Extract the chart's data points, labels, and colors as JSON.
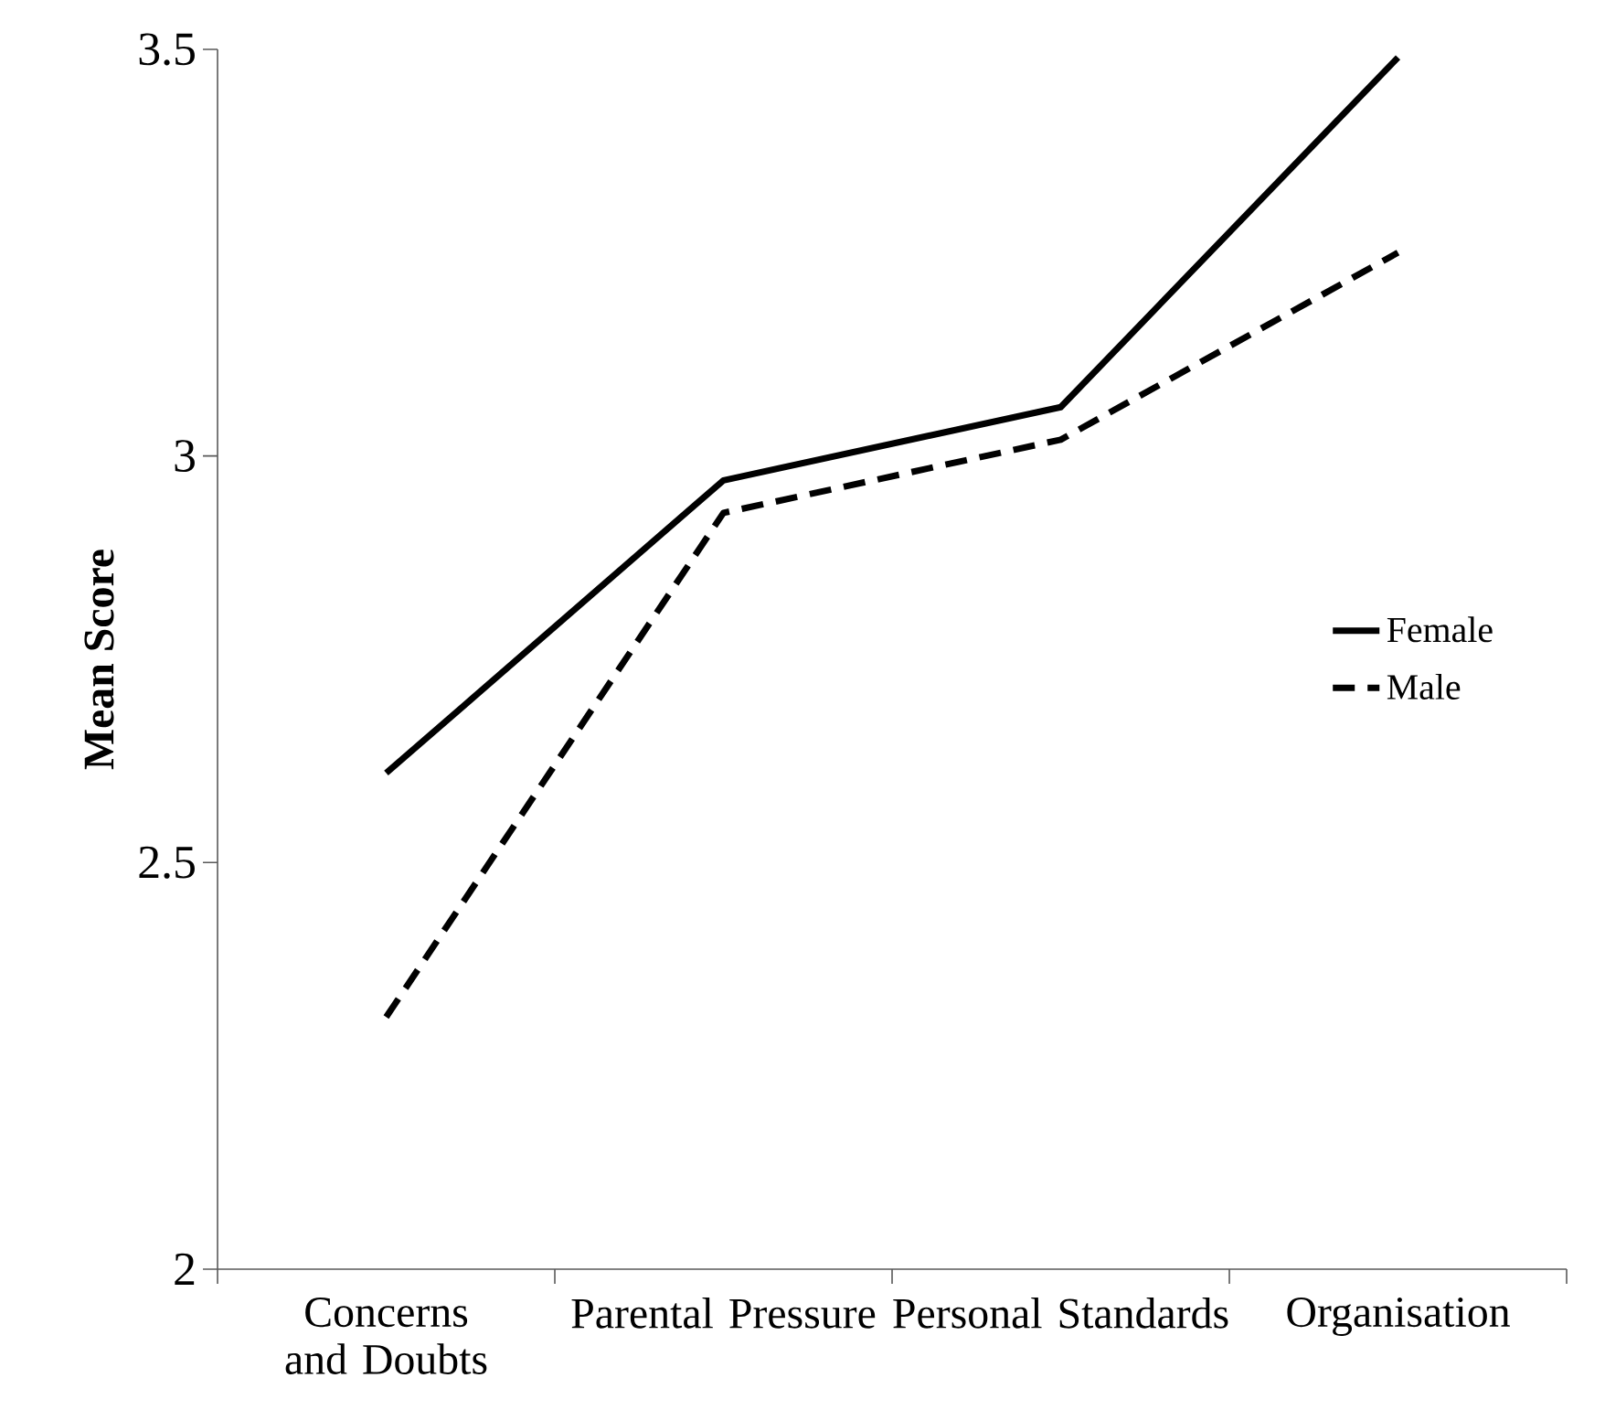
{
  "chart_data": {
    "type": "line",
    "ylabel": "Mean Score",
    "categories": [
      "Concerns and Doubts",
      "Parental Pressure",
      "Personal Standards",
      "Organisation"
    ],
    "series": [
      {
        "name": "Female",
        "color": "#000000",
        "line_style": "solid",
        "values": [
          2.61,
          2.97,
          3.06,
          3.49
        ]
      },
      {
        "name": "Male",
        "color": "#000000",
        "line_style": "dashed",
        "values": [
          2.31,
          2.93,
          3.02,
          3.25
        ]
      }
    ],
    "ylim": [
      2,
      3.5
    ],
    "yticks": [
      2,
      2.5,
      3,
      3.5
    ],
    "grid": false,
    "legend": "right",
    "marker": "none"
  }
}
